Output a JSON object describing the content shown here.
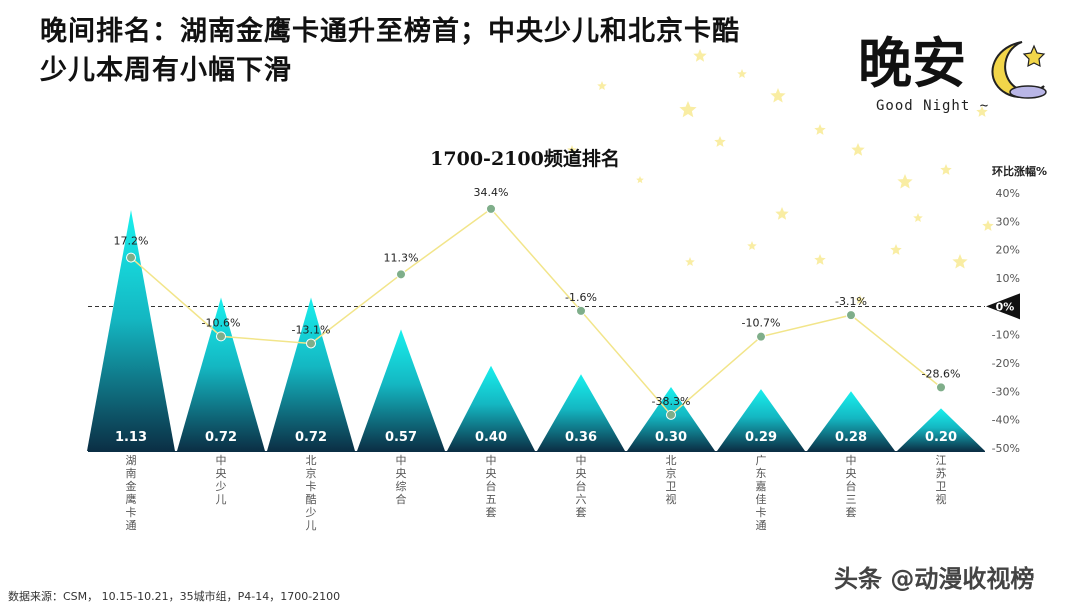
{
  "headline": {
    "line1": "晚间排名：湖南金鹰卡通升至榜首；中央少儿和北京卡酷",
    "line2": "少儿本周有小幅下滑"
  },
  "logo": {
    "text": "晚安",
    "sub": "Good  Night ~",
    "icon": "moon-star-icon"
  },
  "footer": {
    "source": "数据来源：CSM， 10.15-10.21，35城市组，P4-14，1700-2100"
  },
  "watermark": {
    "text": "头条 @动漫收视榜"
  },
  "colors": {
    "bar_top": "#19f0ee",
    "bar_bottom": "#0b2f45",
    "line": "#f2e58a",
    "marker": "#7fae8a",
    "marker_stroke": "#ffffff",
    "star": "#f7e98c"
  },
  "chart_data": {
    "type": "bar",
    "title": "1700-2100频道排名",
    "categories": [
      "湖南金鹰卡通",
      "中央少儿",
      "北京卡酷少儿",
      "中央综合",
      "中央台五套",
      "中央台六套",
      "北京卫视",
      "广东嘉佳卡通",
      "中央台三套",
      "江苏卫视"
    ],
    "series": [
      {
        "values": [
          1.13,
          0.72,
          0.72,
          0.57,
          0.4,
          0.36,
          0.3,
          0.29,
          0.28,
          0.2
        ],
        "labels": [
          "1.13",
          "0.72",
          "0.72",
          "0.57",
          "0.40",
          "0.36",
          "0.30",
          "0.29",
          "0.28",
          "0.20"
        ]
      },
      {
        "type": "line",
        "axis": "right",
        "values": [
          17.2,
          -10.6,
          -13.1,
          11.3,
          34.4,
          -1.6,
          -38.3,
          -10.7,
          -3.1,
          -28.6
        ],
        "labels": [
          "17.2%",
          "-10.6%",
          "-13.1%",
          "11.3%",
          "34.4%",
          "-1.6%",
          "-38.3%",
          "-10.7%",
          "-3.1%",
          "-28.6%"
        ]
      }
    ],
    "y2label": "环比涨幅%",
    "y2lim": [
      -50,
      40
    ],
    "y2ticks": [
      "40%",
      "30%",
      "20%",
      "10%",
      "0%",
      "-10%",
      "-20%",
      "-30%",
      "-40%",
      "-50%"
    ],
    "y2tick_values": [
      40,
      30,
      20,
      10,
      0,
      -10,
      -20,
      -30,
      -40,
      -50
    ],
    "zero_marker_label": "0%",
    "grid": false
  }
}
